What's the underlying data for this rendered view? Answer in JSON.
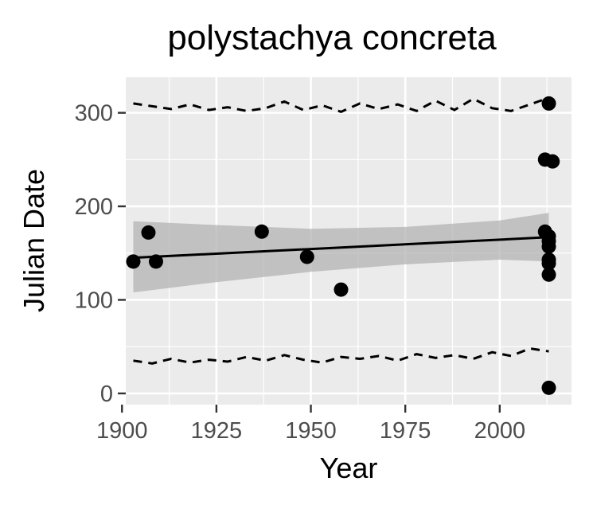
{
  "chart_data": {
    "type": "scatter",
    "title": "polystachya concreta",
    "xlabel": "Year",
    "ylabel": "Julian Date",
    "xlim": [
      1901,
      2019
    ],
    "ylim": [
      -12,
      338
    ],
    "x_ticks": [
      1900,
      1925,
      1950,
      1975,
      2000
    ],
    "y_ticks": [
      0,
      100,
      200,
      300
    ],
    "grid": true,
    "legend": "none",
    "points": {
      "x": [
        1903,
        1907,
        1909,
        1937,
        1949,
        1958,
        2012,
        2012,
        2013,
        2013,
        2013,
        2013,
        2013,
        2013,
        2014,
        2013,
        2013
      ],
      "y": [
        141,
        172,
        141,
        173,
        146,
        111,
        250,
        173,
        168,
        163,
        157,
        143,
        139,
        127,
        248,
        310,
        6
      ]
    },
    "trend_line": {
      "x": [
        1903,
        2013
      ],
      "y": [
        145,
        167
      ]
    },
    "confidence_band": {
      "x": [
        1903,
        1925,
        1950,
        1975,
        2000,
        2013
      ],
      "upper": [
        184,
        180,
        176,
        178,
        185,
        193
      ],
      "lower": [
        108,
        119,
        130,
        138,
        143,
        141
      ]
    },
    "upper_dashed_series": {
      "x": [
        1903,
        1908,
        1913,
        1918,
        1923,
        1928,
        1933,
        1938,
        1943,
        1948,
        1953,
        1958,
        1963,
        1968,
        1973,
        1978,
        1983,
        1988,
        1993,
        1998,
        2003,
        2008,
        2013
      ],
      "y": [
        310,
        307,
        304,
        309,
        303,
        306,
        302,
        305,
        312,
        303,
        308,
        301,
        310,
        304,
        309,
        302,
        313,
        303,
        315,
        305,
        302,
        309,
        316
      ]
    },
    "lower_dashed_series": {
      "x": [
        1903,
        1908,
        1913,
        1918,
        1923,
        1928,
        1933,
        1938,
        1943,
        1948,
        1953,
        1958,
        1963,
        1968,
        1973,
        1978,
        1983,
        1988,
        1993,
        1998,
        2003,
        2008,
        2013
      ],
      "y": [
        35,
        32,
        37,
        33,
        36,
        34,
        39,
        35,
        41,
        36,
        33,
        39,
        37,
        40,
        35,
        42,
        38,
        41,
        37,
        44,
        40,
        48,
        45
      ]
    },
    "colors": {
      "panel_background": "#ebebeb",
      "grid": "#ffffff",
      "points": "#000000",
      "trend_line": "#000000",
      "band_fill": "#b3b3b3"
    }
  }
}
